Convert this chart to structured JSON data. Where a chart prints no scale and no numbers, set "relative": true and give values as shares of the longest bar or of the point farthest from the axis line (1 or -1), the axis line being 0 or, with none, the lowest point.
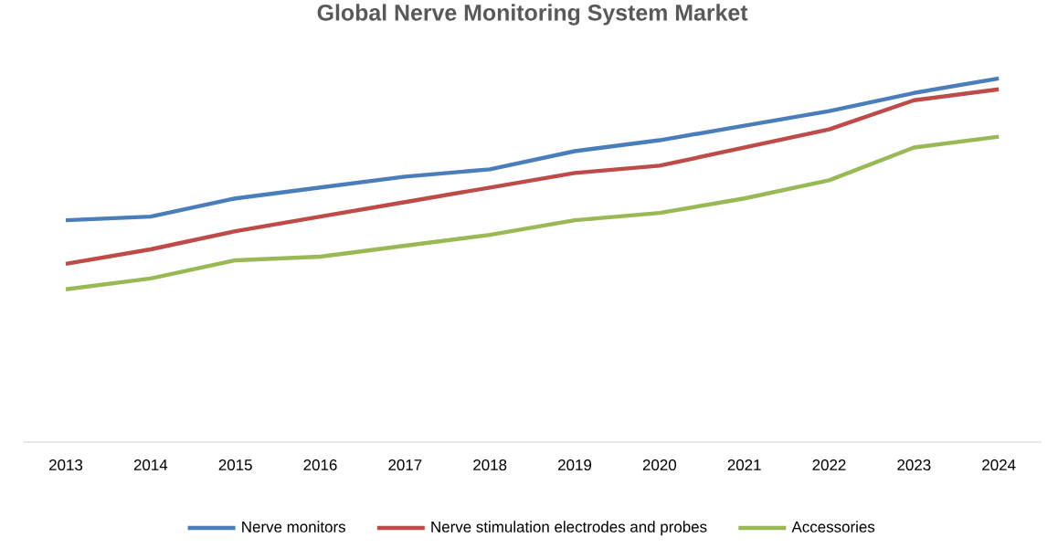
{
  "chart_data": {
    "type": "line",
    "relative": true,
    "title": "Global Nerve Monitoring System Market",
    "categories": [
      "2013",
      "2014",
      "2015",
      "2016",
      "2017",
      "2018",
      "2019",
      "2020",
      "2021",
      "2022",
      "2023",
      "2024"
    ],
    "series": [
      {
        "name": "Nerve monitors",
        "color": "#4a7ebb",
        "values": [
          0.61,
          0.62,
          0.67,
          0.7,
          0.73,
          0.75,
          0.8,
          0.83,
          0.87,
          0.91,
          0.96,
          1.0
        ]
      },
      {
        "name": "Nerve stimulation electrodes and probes",
        "color": "#be4b48",
        "values": [
          0.49,
          0.53,
          0.58,
          0.62,
          0.66,
          0.7,
          0.74,
          0.76,
          0.81,
          0.86,
          0.94,
          0.97
        ]
      },
      {
        "name": "Accessories",
        "color": "#98b954",
        "values": [
          0.42,
          0.45,
          0.5,
          0.51,
          0.54,
          0.57,
          0.61,
          0.63,
          0.67,
          0.72,
          0.81,
          0.84
        ]
      }
    ],
    "legend": "bottom",
    "marker": "none",
    "line_style": "solid"
  }
}
